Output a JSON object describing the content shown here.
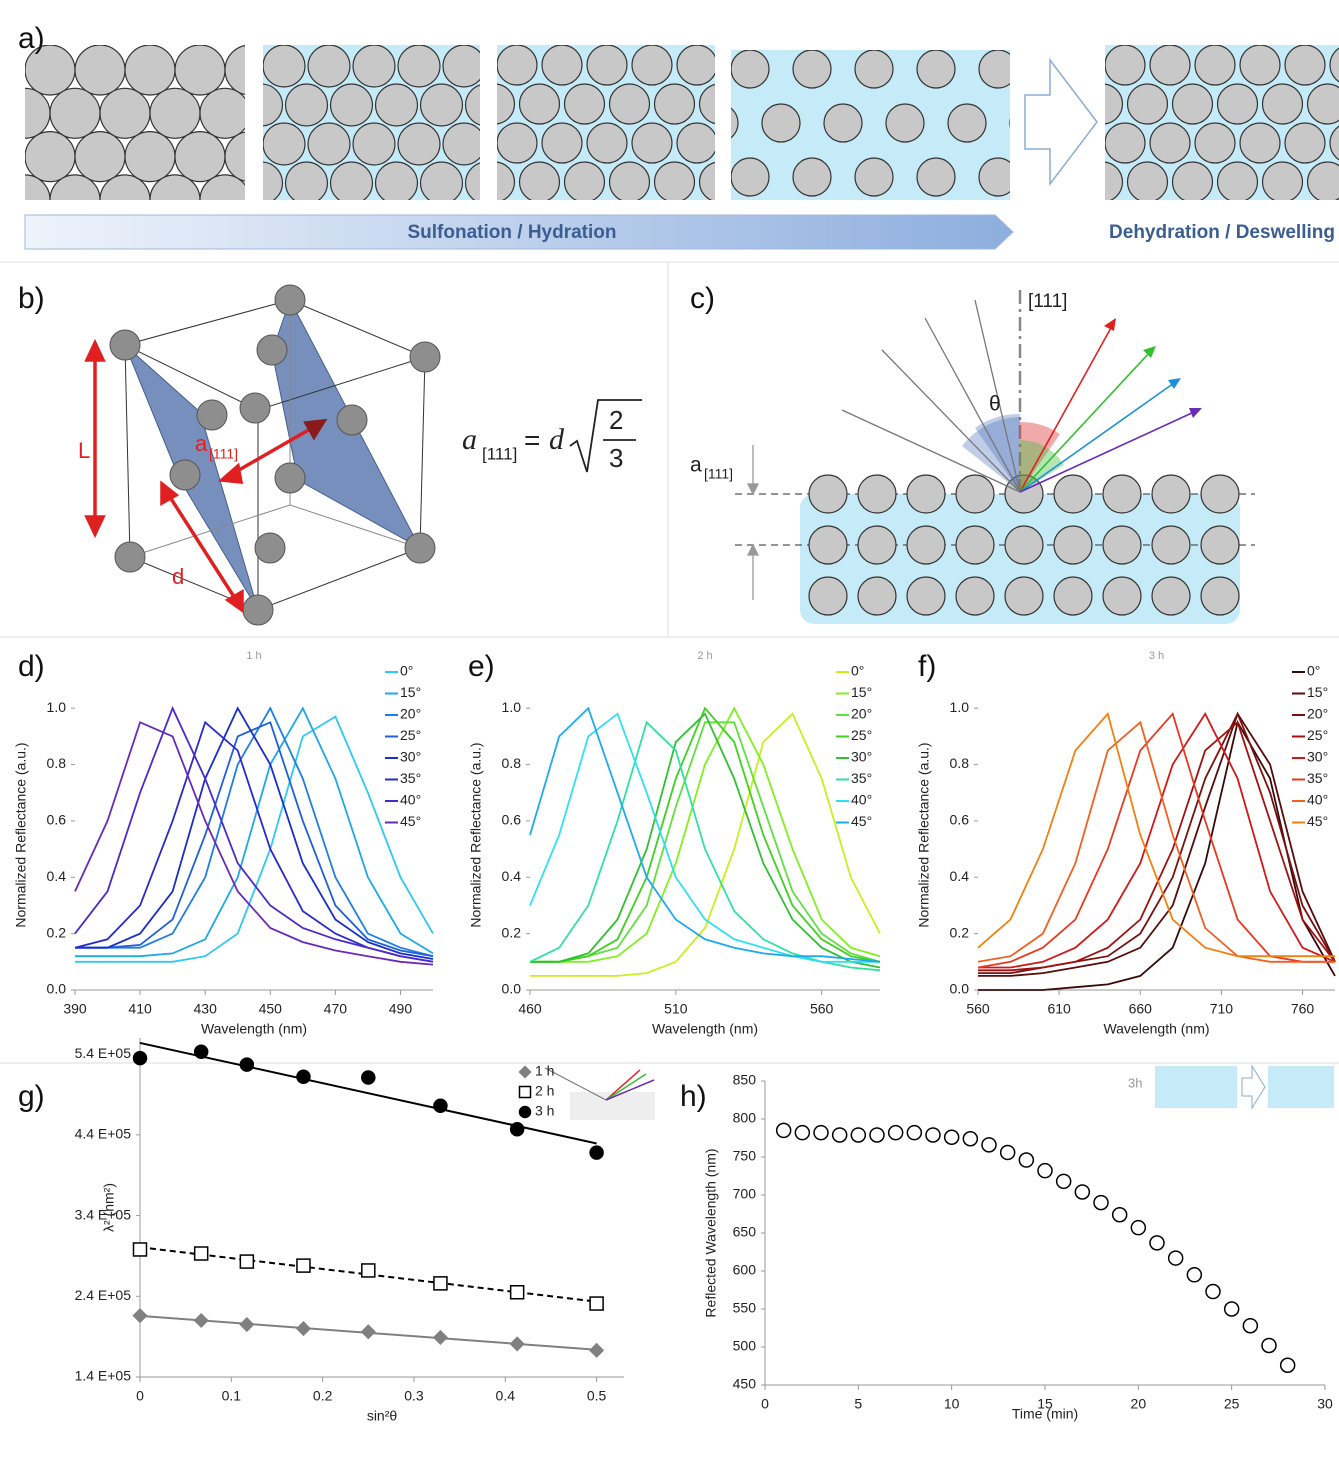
{
  "panel_labels": [
    "a)",
    "b)",
    "c)",
    "d)",
    "e)",
    "f)",
    "g)",
    "h)"
  ],
  "panel_a": {
    "hydration_label": "Sulfonation / Hydration",
    "dehydration_label": "Dehydration / Deswelling"
  },
  "panel_b": {
    "edge_label": "L",
    "spacing_label": "d",
    "plane_label": "a",
    "plane_index": "[111]",
    "equation": {
      "lhs": "a",
      "lhs_index": "[111]",
      "equals": "=",
      "rhs": "d",
      "numerator": "2",
      "denominator": "3"
    }
  },
  "panel_c": {
    "axis_label": "[111]",
    "angle_label": "θ",
    "spacing_label": "a",
    "spacing_index": "[111]"
  },
  "chart_data": [
    {
      "type": "line",
      "title": "1 h",
      "x_label": "Wavelength (nm)",
      "y_label": "Normalized Reflectance (a.u.)",
      "x": [
        390,
        400,
        410,
        420,
        430,
        440,
        450,
        460,
        470,
        480,
        490,
        500
      ],
      "xlim": [
        390,
        500
      ],
      "xticks": [
        390,
        410,
        430,
        450,
        470,
        490
      ],
      "ylim": [
        0,
        1.1
      ],
      "yticks": [
        {
          "value": 0,
          "label": "0.0"
        },
        0.2,
        0.4,
        0.6,
        0.8,
        {
          "value": 1,
          "label": "1.0"
        }
      ],
      "legend": "top-right",
      "series": [
        {
          "name": "0°",
          "color": "#2ec8f2",
          "values": [
            0.1,
            0.1,
            0.1,
            0.1,
            0.12,
            0.2,
            0.5,
            0.9,
            0.97,
            0.7,
            0.4,
            0.2
          ]
        },
        {
          "name": "15°",
          "color": "#1ea8e8",
          "values": [
            0.12,
            0.12,
            0.12,
            0.13,
            0.18,
            0.4,
            0.8,
            1.0,
            0.75,
            0.4,
            0.2,
            0.13
          ]
        },
        {
          "name": "20°",
          "color": "#1e7fe0",
          "values": [
            0.15,
            0.15,
            0.15,
            0.2,
            0.4,
            0.8,
            1.0,
            0.75,
            0.4,
            0.2,
            0.15,
            0.12
          ]
        },
        {
          "name": "25°",
          "color": "#2060d8",
          "values": [
            0.15,
            0.15,
            0.16,
            0.25,
            0.55,
            0.9,
            0.95,
            0.6,
            0.3,
            0.18,
            0.14,
            0.12
          ]
        },
        {
          "name": "30°",
          "color": "#1a2ec8",
          "values": [
            0.15,
            0.15,
            0.2,
            0.35,
            0.75,
            1.0,
            0.8,
            0.45,
            0.25,
            0.17,
            0.13,
            0.11
          ]
        },
        {
          "name": "35°",
          "color": "#2a2acc",
          "values": [
            0.15,
            0.18,
            0.3,
            0.6,
            0.95,
            0.85,
            0.5,
            0.28,
            0.2,
            0.15,
            0.12,
            0.1
          ]
        },
        {
          "name": "40°",
          "color": "#4a2acc",
          "values": [
            0.2,
            0.35,
            0.7,
            1.0,
            0.75,
            0.45,
            0.3,
            0.22,
            0.18,
            0.15,
            0.12,
            0.1
          ]
        },
        {
          "name": "45°",
          "color": "#6a2ab8",
          "values": [
            0.35,
            0.6,
            0.95,
            0.9,
            0.6,
            0.35,
            0.22,
            0.17,
            0.14,
            0.12,
            0.1,
            0.09
          ]
        }
      ]
    },
    {
      "type": "line",
      "title": "2 h",
      "x_label": "Wavelength (nm)",
      "y_label": "Normalized Reflectance (a.u.)",
      "x": [
        460,
        470,
        480,
        490,
        500,
        510,
        520,
        530,
        540,
        550,
        560,
        570,
        580
      ],
      "xlim": [
        460,
        580
      ],
      "xticks": [
        460,
        510,
        560
      ],
      "ylim": [
        0,
        1.1
      ],
      "yticks": [
        {
          "value": 0,
          "label": "0.0"
        },
        0.2,
        0.4,
        0.6,
        0.8,
        {
          "value": 1,
          "label": "1.0"
        }
      ],
      "legend": "top-right",
      "series": [
        {
          "name": "0°",
          "color": "#c8f020",
          "values": [
            0.05,
            0.05,
            0.05,
            0.05,
            0.06,
            0.1,
            0.22,
            0.5,
            0.88,
            0.98,
            0.75,
            0.4,
            0.2
          ]
        },
        {
          "name": "15°",
          "color": "#80f020",
          "values": [
            0.1,
            0.1,
            0.1,
            0.12,
            0.2,
            0.45,
            0.8,
            1.0,
            0.8,
            0.5,
            0.25,
            0.15,
            0.12
          ]
        },
        {
          "name": "20°",
          "color": "#60e040",
          "values": [
            0.1,
            0.1,
            0.12,
            0.15,
            0.3,
            0.65,
            0.95,
            0.95,
            0.65,
            0.35,
            0.2,
            0.13,
            0.1
          ]
        },
        {
          "name": "25°",
          "color": "#40d020",
          "values": [
            0.1,
            0.1,
            0.12,
            0.18,
            0.4,
            0.75,
            1.0,
            0.88,
            0.55,
            0.3,
            0.18,
            0.12,
            0.1
          ]
        },
        {
          "name": "30°",
          "color": "#30c030",
          "values": [
            0.1,
            0.1,
            0.13,
            0.25,
            0.5,
            0.88,
            0.98,
            0.75,
            0.45,
            0.25,
            0.15,
            0.1,
            0.08
          ]
        },
        {
          "name": "35°",
          "color": "#30e0a0",
          "values": [
            0.1,
            0.15,
            0.3,
            0.6,
            0.95,
            0.85,
            0.5,
            0.28,
            0.18,
            0.13,
            0.1,
            0.08,
            0.07
          ]
        },
        {
          "name": "40°",
          "color": "#30e0f0",
          "values": [
            0.3,
            0.55,
            0.9,
            0.98,
            0.7,
            0.4,
            0.25,
            0.18,
            0.15,
            0.12,
            0.1,
            0.1,
            0.1
          ]
        },
        {
          "name": "45°",
          "color": "#20a8f0",
          "values": [
            0.55,
            0.9,
            1.0,
            0.7,
            0.4,
            0.25,
            0.18,
            0.15,
            0.13,
            0.12,
            0.12,
            0.11,
            0.1
          ]
        }
      ]
    },
    {
      "type": "line",
      "title": "3 h",
      "x_label": "Wavelength (nm)",
      "y_label": "Normalized Reflectance (a.u.)",
      "x": [
        560,
        580,
        600,
        620,
        640,
        660,
        680,
        700,
        720,
        740,
        760,
        780
      ],
      "xlim": [
        560,
        780
      ],
      "xticks": [
        560,
        610,
        660,
        710,
        760
      ],
      "ylim": [
        0,
        1.1
      ],
      "yticks": [
        {
          "value": 0,
          "label": "0.0"
        },
        0.2,
        0.4,
        0.6,
        0.8,
        {
          "value": 1,
          "label": "1.0"
        }
      ],
      "legend": "top-right",
      "series": [
        {
          "name": "0°",
          "color": "#3a0a0a",
          "values": [
            0,
            0,
            0,
            0.01,
            0.02,
            0.05,
            0.15,
            0.45,
            0.95,
            0.75,
            0.25,
            0.05
          ]
        },
        {
          "name": "15°",
          "color": "#5a0a0a",
          "values": [
            0.05,
            0.05,
            0.06,
            0.08,
            0.1,
            0.15,
            0.3,
            0.65,
            0.98,
            0.8,
            0.35,
            0.1
          ]
        },
        {
          "name": "20°",
          "color": "#7a1010",
          "values": [
            0.06,
            0.06,
            0.08,
            0.1,
            0.12,
            0.2,
            0.4,
            0.75,
            0.98,
            0.7,
            0.3,
            0.1
          ]
        },
        {
          "name": "25°",
          "color": "#a01010",
          "values": [
            0.07,
            0.07,
            0.08,
            0.1,
            0.15,
            0.25,
            0.5,
            0.85,
            0.95,
            0.6,
            0.25,
            0.1
          ]
        },
        {
          "name": "30°",
          "color": "#d01818",
          "values": [
            0.08,
            0.08,
            0.1,
            0.15,
            0.25,
            0.45,
            0.8,
            0.98,
            0.75,
            0.35,
            0.15,
            0.1
          ]
        },
        {
          "name": "35°",
          "color": "#e83820",
          "values": [
            0.08,
            0.1,
            0.15,
            0.25,
            0.5,
            0.85,
            0.98,
            0.6,
            0.25,
            0.12,
            0.1,
            0.1
          ]
        },
        {
          "name": "40°",
          "color": "#f06020",
          "values": [
            0.1,
            0.12,
            0.2,
            0.45,
            0.85,
            0.95,
            0.55,
            0.22,
            0.12,
            0.1,
            0.1,
            0.1
          ]
        },
        {
          "name": "45°",
          "color": "#f08010",
          "values": [
            0.15,
            0.25,
            0.5,
            0.85,
            0.98,
            0.55,
            0.25,
            0.15,
            0.12,
            0.12,
            0.12,
            0.12
          ]
        }
      ]
    },
    {
      "type": "scatter",
      "x_label": "sin²θ",
      "y_label": "λ² (nm²)",
      "x": [
        0,
        0.067,
        0.117,
        0.179,
        0.25,
        0.329,
        0.413,
        0.5
      ],
      "xlim": [
        0,
        0.53
      ],
      "xticks": [
        0,
        0.1,
        0.2,
        0.3,
        0.4,
        0.5
      ],
      "ylim": [
        140000,
        560000
      ],
      "yticks": [
        {
          "value": 140000,
          "label": "1.4 E+05"
        },
        {
          "value": 240000,
          "label": "2.4 E+05"
        },
        {
          "value": 340000,
          "label": "3.4 E+05"
        },
        {
          "value": 440000,
          "label": "4.4 E+05"
        },
        {
          "value": 540000,
          "label": "5.4 E+05"
        }
      ],
      "legend": "top-right",
      "series": [
        {
          "name": "1 h",
          "color": "#808080",
          "marker": "diamond",
          "marker_fill": "#808080",
          "line_style": "solid",
          "trendline": true,
          "values": [
            216000,
            210000,
            205000,
            200000,
            196000,
            189000,
            181000,
            173000
          ]
        },
        {
          "name": "2 h",
          "color": "#000000",
          "marker": "square",
          "marker_fill": "#ffffff",
          "line_style": "dashed",
          "trendline": true,
          "values": [
            298000,
            293000,
            283000,
            278000,
            272000,
            256000,
            245000,
            231000
          ]
        },
        {
          "name": "3 h",
          "color": "#000000",
          "marker": "circle",
          "marker_fill": "#000000",
          "line_style": "solid",
          "trendline": true,
          "values": [
            535000,
            543000,
            527000,
            512000,
            511000,
            476000,
            447000,
            418000
          ]
        }
      ]
    },
    {
      "type": "scatter",
      "x_label": "Time (min)",
      "y_label": "Reflected Wavelength (nm)",
      "inset_label": "3h",
      "color": "#000000",
      "marker": "circle",
      "marker_fill": "#ffffff",
      "x": [
        1,
        2,
        3,
        4,
        5,
        6,
        7,
        8,
        9,
        10,
        11,
        12,
        13,
        14,
        15,
        16,
        17,
        18,
        19,
        20,
        21,
        22,
        23,
        24,
        25,
        26,
        27,
        28
      ],
      "values": [
        785,
        782,
        782,
        779,
        779,
        779,
        782,
        782,
        779,
        776,
        774,
        766,
        756,
        746,
        732,
        718,
        704,
        690,
        674,
        657,
        637,
        617,
        595,
        573,
        550,
        528,
        502,
        476
      ],
      "xlim": [
        0,
        30
      ],
      "xticks": [
        0,
        5,
        10,
        15,
        20,
        25,
        30
      ],
      "ylim": [
        450,
        850
      ],
      "yticks": [
        450,
        500,
        550,
        600,
        650,
        700,
        750,
        800,
        850
      ]
    }
  ]
}
